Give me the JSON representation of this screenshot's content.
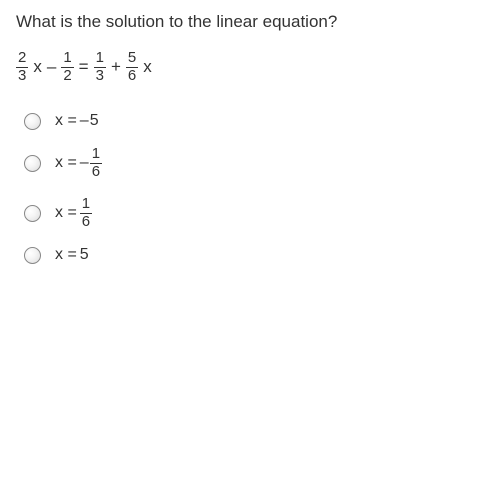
{
  "question": {
    "text": "What is the solution to the linear equation?"
  },
  "equation": {
    "term1": {
      "num": "2",
      "den": "3",
      "var": "x"
    },
    "op1": "–",
    "term2": {
      "num": "1",
      "den": "2"
    },
    "eq": "=",
    "term3": {
      "num": "1",
      "den": "3"
    },
    "op2": "+",
    "term4": {
      "num": "5",
      "den": "6",
      "var": "x"
    }
  },
  "options": [
    {
      "prefix": "x = ",
      "neg": "–",
      "value": "5",
      "is_frac": false
    },
    {
      "prefix": "x = ",
      "neg": "–",
      "num": "1",
      "den": "6",
      "is_frac": true
    },
    {
      "prefix": "x = ",
      "neg": "",
      "num": "1",
      "den": "6",
      "is_frac": true
    },
    {
      "prefix": "x = ",
      "neg": "",
      "value": "5",
      "is_frac": false
    }
  ],
  "colors": {
    "text": "#333333",
    "background": "#ffffff",
    "radio_border": "#888888",
    "frac_rule": "#333333"
  },
  "typography": {
    "question_fontsize": 17,
    "equation_fontsize": 17,
    "option_fontsize": 16,
    "fraction_fontsize": 15,
    "font_family": "Arial, Helvetica, sans-serif"
  }
}
